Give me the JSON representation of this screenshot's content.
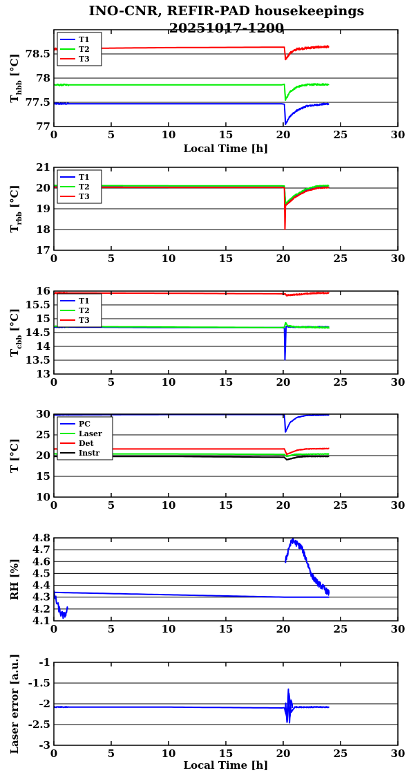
{
  "title_line1": "INO-CNR, REFIR-PAD housekeepings",
  "title_line2": "20251017-1200",
  "xaxis": {
    "label": "Local Time [h]",
    "range": [
      0,
      30
    ],
    "ticks": [
      0,
      5,
      10,
      15,
      20,
      25,
      30
    ]
  },
  "chart_data": [
    {
      "type": "line",
      "ylabel": {
        "main": "T",
        "sub": "hbb",
        "unit": " [°C]"
      },
      "xlabel": "Local Time [h]",
      "xlim": [
        0,
        30
      ],
      "ylim": [
        77,
        79
      ],
      "yticks": [
        77,
        77.5,
        78,
        78.5
      ],
      "grid": "y",
      "legend": "top-left",
      "series": [
        {
          "name": "T1",
          "color": "#0000ff",
          "x": [
            0,
            10,
            20.1,
            20.2,
            20.6,
            21.2,
            22,
            23,
            24
          ],
          "y": [
            77.47,
            77.47,
            77.47,
            77.05,
            77.22,
            77.33,
            77.42,
            77.45,
            77.47
          ],
          "noise": 0.015
        },
        {
          "name": "T2",
          "color": "#00ee00",
          "x": [
            0,
            10,
            20.1,
            20.2,
            20.6,
            21.2,
            22,
            23,
            24
          ],
          "y": [
            77.86,
            77.86,
            77.86,
            77.55,
            77.72,
            77.82,
            77.86,
            77.87,
            77.87
          ],
          "noise": 0.015
        },
        {
          "name": "T3",
          "color": "#ff0000",
          "x": [
            0,
            5,
            10,
            20.1,
            20.2,
            20.6,
            21.2,
            22,
            23,
            24
          ],
          "y": [
            78.6,
            78.62,
            78.63,
            78.64,
            78.38,
            78.52,
            78.6,
            78.62,
            78.64,
            78.65
          ],
          "noise": 0.02
        }
      ]
    },
    {
      "type": "line",
      "ylabel": {
        "main": "T",
        "sub": "rbb",
        "unit": " [°C]"
      },
      "xlabel": "",
      "xlim": [
        0,
        30
      ],
      "ylim": [
        17,
        21
      ],
      "yticks": [
        17,
        18,
        19,
        20,
        21
      ],
      "grid": "y",
      "legend": "top-left",
      "series": [
        {
          "name": "T1",
          "color": "#0000ff",
          "x": [
            0,
            12,
            20.1,
            20.2,
            21,
            22,
            23,
            24
          ],
          "y": [
            20.05,
            20.04,
            20.04,
            19.2,
            19.6,
            19.9,
            20.03,
            20.05
          ],
          "noise": 0.02
        },
        {
          "name": "T2",
          "color": "#00ee00",
          "x": [
            0,
            12,
            20.1,
            20.2,
            21,
            22,
            23,
            24
          ],
          "y": [
            20.12,
            20.11,
            20.11,
            19.25,
            19.65,
            19.95,
            20.1,
            20.12
          ],
          "noise": 0.02
        },
        {
          "name": "T3",
          "color": "#ff0000",
          "x": [
            0,
            12,
            20.1,
            20.15,
            20.2,
            21,
            22,
            23,
            24
          ],
          "y": [
            20.04,
            20.03,
            20.03,
            18.0,
            19.15,
            19.55,
            19.85,
            20.0,
            20.03
          ],
          "noise": 0.02
        }
      ]
    },
    {
      "type": "line",
      "ylabel": {
        "main": "T",
        "sub": "cbb",
        "unit": " [°C]"
      },
      "xlabel": "",
      "xlim": [
        0,
        30
      ],
      "ylim": [
        13,
        16
      ],
      "yticks": [
        13,
        13.5,
        14,
        14.5,
        15,
        15.5,
        16
      ],
      "grid": "y",
      "legend": "top-left",
      "series": [
        {
          "name": "T1",
          "color": "#0000ff",
          "x": [
            0,
            10,
            20.1,
            20.15,
            20.25,
            21,
            24
          ],
          "y": [
            14.7,
            14.68,
            14.68,
            13.5,
            14.72,
            14.7,
            14.7
          ],
          "noise": 0.015
        },
        {
          "name": "T2",
          "color": "#00ee00",
          "x": [
            0,
            10,
            20.1,
            20.2,
            20.4,
            21,
            24
          ],
          "y": [
            14.72,
            14.7,
            14.68,
            14.85,
            14.75,
            14.7,
            14.68
          ],
          "noise": 0.02
        },
        {
          "name": "T3",
          "color": "#ff0000",
          "x": [
            0,
            10,
            20.1,
            20.3,
            21,
            22,
            23,
            24
          ],
          "y": [
            15.93,
            15.92,
            15.9,
            15.85,
            15.87,
            15.9,
            15.93,
            15.93
          ],
          "noise": 0.02
        }
      ]
    },
    {
      "type": "line",
      "ylabel": {
        "main": "T [°C]",
        "sub": "",
        "unit": ""
      },
      "xlabel": "",
      "xlim": [
        0,
        30
      ],
      "ylim": [
        10,
        30
      ],
      "yticks": [
        10,
        15,
        20,
        25,
        30
      ],
      "grid": "y",
      "legend": "top-left",
      "series": [
        {
          "name": "PC",
          "color": "#0000ff",
          "x": [
            0,
            10,
            20.1,
            20.2,
            20.6,
            21.2,
            22,
            24
          ],
          "y": [
            29.8,
            29.9,
            29.9,
            25.7,
            28.0,
            29.2,
            29.7,
            29.8
          ],
          "noise": 0.05
        },
        {
          "name": "Laser",
          "color": "#00ee00",
          "x": [
            0,
            10,
            20.1,
            20.3,
            21,
            24
          ],
          "y": [
            20.4,
            20.4,
            20.3,
            19.8,
            20.3,
            20.4
          ],
          "noise": 0.05
        },
        {
          "name": "Det",
          "color": "#ff0000",
          "x": [
            0,
            10,
            20.1,
            20.3,
            21.2,
            22,
            24
          ],
          "y": [
            21.6,
            21.6,
            21.6,
            20.3,
            21.3,
            21.6,
            21.7
          ],
          "noise": 0.05
        },
        {
          "name": "Instr",
          "color": "#000000",
          "x": [
            0,
            10,
            20.1,
            20.3,
            21.2,
            22,
            24
          ],
          "y": [
            19.8,
            19.8,
            19.6,
            19.0,
            19.6,
            19.8,
            19.8
          ],
          "noise": 0.05
        }
      ]
    },
    {
      "type": "line",
      "ylabel": {
        "main": "RH [%]",
        "sub": "",
        "unit": ""
      },
      "xlabel": "",
      "xlim": [
        0,
        30
      ],
      "ylim": [
        4.1,
        4.8
      ],
      "yticks": [
        4.1,
        4.2,
        4.3,
        4.4,
        4.5,
        4.6,
        4.7,
        4.8
      ],
      "grid": "y",
      "legend": "",
      "series": [
        {
          "name": "",
          "color": "#0000ff",
          "x": [
            0,
            10,
            20.1,
            24
          ],
          "y": [
            4.34,
            4.32,
            4.3,
            4.3
          ],
          "noise": 0.0
        },
        {
          "name": "",
          "color": "#0000ff",
          "x": [
            0,
            0.3,
            0.6,
            0.9,
            1.2
          ],
          "y": [
            4.33,
            4.24,
            4.16,
            4.14,
            4.2
          ],
          "noise": 0.03
        },
        {
          "name": "",
          "color": "#0000ff",
          "x": [
            20.2,
            20.5,
            20.8,
            21.2,
            21.6,
            22.0,
            22.5,
            23.0,
            23.5,
            24
          ],
          "y": [
            4.6,
            4.72,
            4.78,
            4.75,
            4.72,
            4.62,
            4.48,
            4.42,
            4.38,
            4.33
          ],
          "noise": 0.025
        }
      ]
    },
    {
      "type": "line",
      "ylabel": {
        "main": "Laser error [a.u.]",
        "sub": "",
        "unit": ""
      },
      "xlabel": "Local Time [h]",
      "xlim": [
        0,
        30
      ],
      "ylim": [
        -3,
        -1
      ],
      "yticks": [
        -3,
        -2.5,
        -2,
        -1.5,
        -1
      ],
      "grid": "y",
      "legend": "",
      "series": [
        {
          "name": "",
          "color": "#0000ff",
          "x": [
            0,
            10,
            20.1,
            20.3,
            20.5,
            20.7,
            21,
            24
          ],
          "y": [
            -2.08,
            -2.08,
            -2.1,
            -2.3,
            -1.75,
            -2.2,
            -2.08,
            -2.08
          ],
          "noise": 0.01
        },
        {
          "name": "",
          "color": "#0000ff",
          "x": [
            20.2,
            20.35,
            20.45,
            20.55,
            20.65,
            20.8
          ],
          "y": [
            -2.0,
            -2.45,
            -1.65,
            -2.5,
            -1.9,
            -2.1
          ],
          "noise": 0.08
        }
      ]
    }
  ]
}
